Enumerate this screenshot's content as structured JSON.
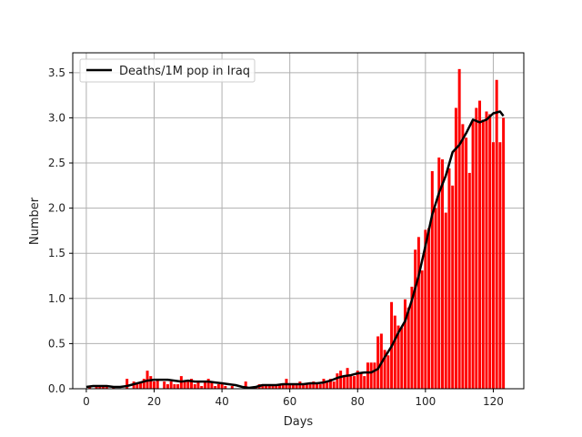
{
  "chart_data": {
    "type": "bar",
    "title": "",
    "xlabel": "Days",
    "ylabel": "Number",
    "xlim": [
      -4,
      129
    ],
    "ylim": [
      0,
      3.72
    ],
    "xticks": [
      0,
      20,
      40,
      60,
      80,
      100,
      120
    ],
    "yticks": [
      0.0,
      0.5,
      1.0,
      1.5,
      2.0,
      2.5,
      3.0,
      3.5
    ],
    "ytick_labels": [
      "0.0",
      "0.5",
      "1.0",
      "1.5",
      "2.0",
      "2.5",
      "3.0",
      "3.5"
    ],
    "grid": true,
    "legend": {
      "position": "upper-left"
    },
    "colors": {
      "bars": "#ff0000",
      "line": "#000000",
      "grid": "#b0b0b0"
    },
    "series": [
      {
        "name": "",
        "kind": "bar",
        "x": [
          0,
          1,
          2,
          3,
          4,
          5,
          6,
          7,
          8,
          9,
          10,
          11,
          12,
          13,
          14,
          15,
          16,
          17,
          18,
          19,
          20,
          21,
          22,
          23,
          24,
          25,
          26,
          27,
          28,
          29,
          30,
          31,
          32,
          33,
          34,
          35,
          36,
          37,
          38,
          39,
          40,
          41,
          42,
          43,
          44,
          45,
          46,
          47,
          48,
          49,
          50,
          51,
          52,
          53,
          54,
          55,
          56,
          57,
          58,
          59,
          60,
          61,
          62,
          63,
          64,
          65,
          66,
          67,
          68,
          69,
          70,
          71,
          72,
          73,
          74,
          75,
          76,
          77,
          78,
          79,
          80,
          81,
          82,
          83,
          84,
          85,
          86,
          87,
          88,
          89,
          90,
          91,
          92,
          93,
          94,
          95,
          96,
          97,
          98,
          99,
          100,
          101,
          102,
          103,
          104,
          105,
          106,
          107,
          108,
          109,
          110,
          111,
          112,
          113,
          114,
          115,
          116,
          117,
          118,
          119,
          120,
          121,
          122,
          123
        ],
        "values": [
          0.0,
          0.03,
          0.0,
          0.03,
          0.03,
          0.03,
          0.03,
          0.0,
          0.03,
          0.0,
          0.0,
          0.0,
          0.11,
          0.0,
          0.08,
          0.05,
          0.08,
          0.11,
          0.2,
          0.14,
          0.08,
          0.11,
          0.0,
          0.08,
          0.05,
          0.08,
          0.05,
          0.05,
          0.14,
          0.08,
          0.08,
          0.11,
          0.05,
          0.08,
          0.03,
          0.08,
          0.11,
          0.08,
          0.03,
          0.05,
          0.05,
          0.03,
          0.0,
          0.03,
          0.0,
          0.0,
          0.0,
          0.08,
          0.0,
          0.0,
          0.03,
          0.05,
          0.05,
          0.05,
          0.05,
          0.05,
          0.05,
          0.05,
          0.05,
          0.11,
          0.05,
          0.05,
          0.05,
          0.08,
          0.05,
          0.05,
          0.05,
          0.08,
          0.05,
          0.05,
          0.11,
          0.08,
          0.11,
          0.08,
          0.17,
          0.2,
          0.14,
          0.23,
          0.14,
          0.14,
          0.2,
          0.17,
          0.14,
          0.29,
          0.29,
          0.29,
          0.58,
          0.61,
          0.43,
          0.37,
          0.96,
          0.81,
          0.7,
          0.68,
          0.99,
          0.9,
          1.13,
          1.54,
          1.68,
          1.31,
          1.76,
          1.78,
          2.41,
          2.0,
          2.56,
          2.54,
          1.95,
          2.44,
          2.25,
          3.11,
          3.54,
          2.93,
          2.78,
          2.39,
          2.98,
          3.11,
          3.19,
          2.98,
          3.07,
          3.04,
          2.73,
          3.42,
          2.73,
          3.0
        ]
      },
      {
        "name": "Deaths/1M pop in Iraq",
        "kind": "line",
        "x": [
          0,
          2,
          4,
          6,
          8,
          10,
          12,
          14,
          16,
          18,
          20,
          22,
          24,
          26,
          28,
          30,
          32,
          34,
          36,
          38,
          40,
          42,
          44,
          46,
          48,
          50,
          52,
          54,
          56,
          58,
          60,
          62,
          64,
          66,
          68,
          70,
          72,
          74,
          76,
          78,
          80,
          82,
          84,
          86,
          88,
          90,
          92,
          94,
          96,
          98,
          100,
          102,
          104,
          106,
          108,
          110,
          112,
          114,
          116,
          118,
          120,
          122,
          123
        ],
        "values": [
          0.02,
          0.03,
          0.03,
          0.03,
          0.02,
          0.02,
          0.03,
          0.05,
          0.07,
          0.09,
          0.1,
          0.1,
          0.1,
          0.09,
          0.08,
          0.09,
          0.08,
          0.08,
          0.08,
          0.07,
          0.06,
          0.05,
          0.04,
          0.02,
          0.01,
          0.02,
          0.04,
          0.04,
          0.04,
          0.05,
          0.05,
          0.05,
          0.05,
          0.06,
          0.06,
          0.07,
          0.09,
          0.12,
          0.14,
          0.15,
          0.17,
          0.18,
          0.18,
          0.22,
          0.35,
          0.47,
          0.62,
          0.75,
          0.98,
          1.25,
          1.58,
          1.93,
          2.17,
          2.36,
          2.62,
          2.7,
          2.83,
          2.98,
          2.95,
          2.98,
          3.05,
          3.07,
          3.02
        ]
      }
    ]
  }
}
